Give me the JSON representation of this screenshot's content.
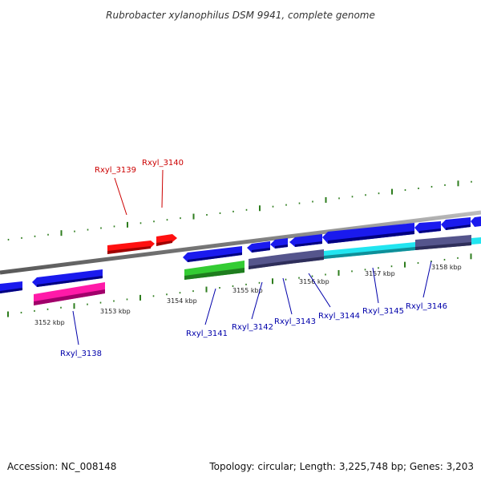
{
  "title": "Rubrobacter xylanophilus DSM 9941, complete genome",
  "footer": {
    "accession": "Accession: NC_008148",
    "topology": "Topology: circular; Length: 3,225,748 bp; Genes: 3,203"
  },
  "colors": {
    "backbone": "#8a8a8a",
    "tick": "#2e7d1e",
    "label_forward": "#cc0000",
    "label_reverse": "#0000aa",
    "gene_red": "#ff1010",
    "gene_blue": "#1a1aee",
    "gene_pink": "#ff1aa8",
    "gene_green": "#33cc33",
    "gene_slate": "#55558c",
    "gene_cyan": "#22e5f0"
  },
  "scale": {
    "ticks": [
      {
        "label": "3152 kbp"
      },
      {
        "label": "3153 kbp"
      },
      {
        "label": "3154 kbp"
      },
      {
        "label": "3155 kbp"
      },
      {
        "label": "3156 kbp"
      },
      {
        "label": "3157 kbp"
      },
      {
        "label": "3158 kbp"
      }
    ]
  },
  "genes": [
    {
      "id": "Rxyl_3138",
      "label": "Rxyl_3138",
      "strand": "reverse",
      "color": "gene_pink"
    },
    {
      "id": "Rxyl_3139",
      "label": "Rxyl_3139",
      "strand": "forward",
      "color": "gene_red"
    },
    {
      "id": "Rxyl_3140",
      "label": "Rxyl_3140",
      "strand": "forward",
      "color": "gene_red"
    },
    {
      "id": "Rxyl_3141",
      "label": "Rxyl_3141",
      "strand": "reverse",
      "color": "gene_green"
    },
    {
      "id": "Rxyl_3142",
      "label": "Rxyl_3142",
      "strand": "reverse",
      "color": "gene_slate"
    },
    {
      "id": "Rxyl_3143",
      "label": "Rxyl_3143",
      "strand": "reverse",
      "color": "gene_slate"
    },
    {
      "id": "Rxyl_3144",
      "label": "Rxyl_3144",
      "strand": "reverse",
      "color": "gene_slate"
    },
    {
      "id": "Rxyl_3145",
      "label": "Rxyl_3145",
      "strand": "reverse",
      "color": "gene_cyan"
    },
    {
      "id": "Rxyl_3146",
      "label": "Rxyl_3146",
      "strand": "reverse",
      "color": "gene_slate"
    }
  ]
}
